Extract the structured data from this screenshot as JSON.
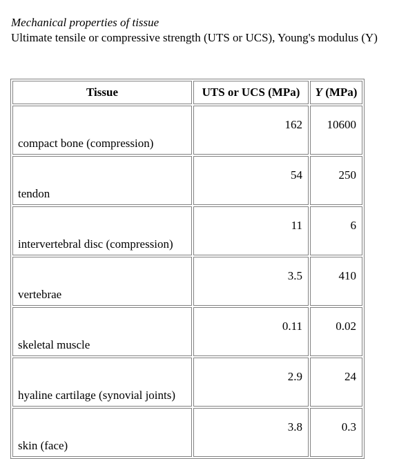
{
  "caption": {
    "title": "Mechanical properties of tissue",
    "subtitle": "Ultimate tensile or compressive strength (UTS or UCS), Young's modulus (Y)"
  },
  "table": {
    "headers": {
      "tissue": "Tissue",
      "uts": "UTS or UCS (MPa)",
      "y_symbol": "Y",
      "y_unit": " (MPa)"
    },
    "rows": [
      {
        "tissue": "compact bone (compression)",
        "uts": "162",
        "y": "10600"
      },
      {
        "tissue": "tendon",
        "uts": "54",
        "y": "250"
      },
      {
        "tissue": "intervertebral disc (compression)",
        "uts": "11",
        "y": "6"
      },
      {
        "tissue": "vertebrae",
        "uts": "3.5",
        "y": "410"
      },
      {
        "tissue": "skeletal muscle",
        "uts": "0.11",
        "y": "0.02"
      },
      {
        "tissue": "hyaline cartilage (synovial joints)",
        "uts": "2.9",
        "y": "24"
      },
      {
        "tissue": "skin (face)",
        "uts": "3.8",
        "y": "0.3"
      }
    ]
  }
}
